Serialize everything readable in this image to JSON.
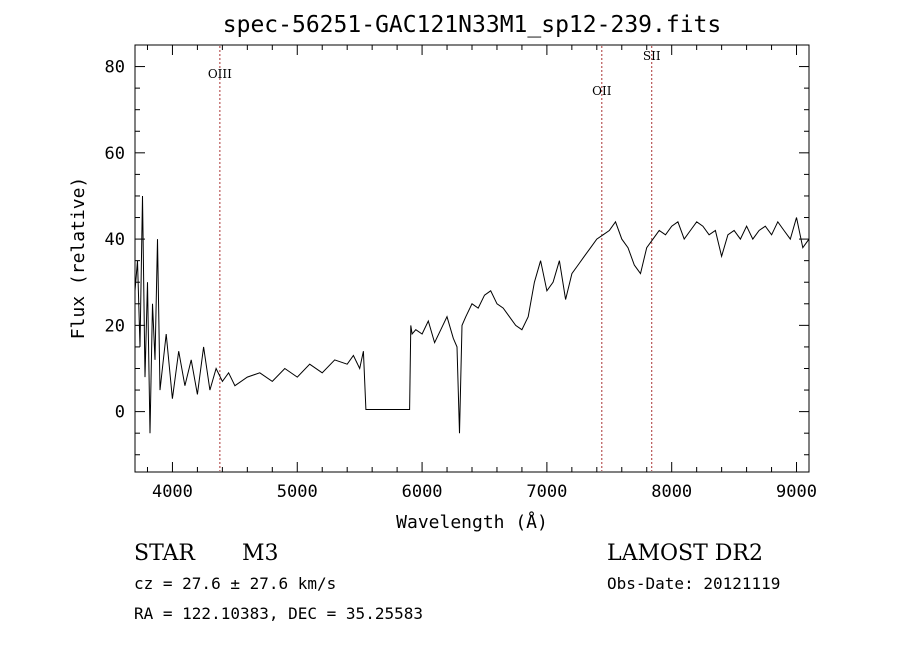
{
  "chart_data": {
    "type": "line",
    "title": "spec-56251-GAC121N33M1_sp12-239.fits",
    "xlabel": "Wavelength (Å)",
    "ylabel": "Flux (relative)",
    "xlim": [
      3700,
      9100
    ],
    "ylim": [
      -14,
      85
    ],
    "xticks": [
      4000,
      5000,
      6000,
      7000,
      8000,
      9000
    ],
    "yticks": [
      0,
      20,
      40,
      60,
      80
    ],
    "grid": false,
    "line_color": "#000000",
    "marker_color": "#aa3333",
    "spectrum": {
      "x": [
        3700,
        3720,
        3740,
        3760,
        3780,
        3800,
        3820,
        3840,
        3860,
        3880,
        3900,
        3950,
        4000,
        4050,
        4100,
        4150,
        4200,
        4250,
        4300,
        4350,
        4400,
        4450,
        4500,
        4600,
        4700,
        4800,
        4900,
        5000,
        5100,
        5200,
        5300,
        5400,
        5450,
        5500,
        5530,
        5550,
        5600,
        5700,
        5800,
        5900,
        5910,
        5920,
        5950,
        6000,
        6050,
        6100,
        6150,
        6200,
        6250,
        6280,
        6300,
        6320,
        6350,
        6400,
        6450,
        6500,
        6550,
        6600,
        6650,
        6700,
        6750,
        6800,
        6850,
        6900,
        6950,
        7000,
        7050,
        7100,
        7150,
        7200,
        7250,
        7300,
        7350,
        7400,
        7450,
        7500,
        7550,
        7600,
        7650,
        7700,
        7750,
        7800,
        7850,
        7900,
        7950,
        8000,
        8050,
        8100,
        8150,
        8200,
        8250,
        8300,
        8350,
        8400,
        8450,
        8500,
        8550,
        8600,
        8650,
        8700,
        8750,
        8800,
        8850,
        8900,
        8950,
        9000,
        9050,
        9100
      ],
      "y": [
        28,
        35,
        15,
        50,
        8,
        30,
        -5,
        25,
        12,
        40,
        5,
        18,
        3,
        14,
        6,
        12,
        4,
        15,
        5,
        10,
        7,
        9,
        6,
        8,
        9,
        7,
        10,
        8,
        11,
        9,
        12,
        11,
        13,
        10,
        14,
        0.5,
        0.5,
        0.5,
        0.5,
        0.5,
        20,
        18,
        19,
        18,
        21,
        16,
        19,
        22,
        17,
        15,
        -5,
        20,
        22,
        25,
        24,
        27,
        28,
        25,
        24,
        22,
        20,
        19,
        22,
        30,
        35,
        28,
        30,
        35,
        26,
        32,
        34,
        36,
        38,
        40,
        41,
        42,
        44,
        40,
        38,
        34,
        32,
        38,
        40,
        42,
        41,
        43,
        44,
        40,
        42,
        44,
        43,
        41,
        42,
        36,
        41,
        42,
        40,
        43,
        40,
        42,
        43,
        41,
        44,
        42,
        40,
        45,
        38,
        40
      ]
    },
    "lines": [
      {
        "label": "OIII",
        "x": 4380
      },
      {
        "label": "OII",
        "x": 7440
      },
      {
        "label": "SII",
        "x": 7840
      }
    ]
  },
  "footer": {
    "object_class": "STAR",
    "subclass": "M3",
    "survey": "LAMOST DR2",
    "cz": "cz = 27.6 ± 27.6 km/s",
    "obs_date": "Obs-Date: 20121119",
    "coords": "RA = 122.10383, DEC =  35.25583"
  }
}
